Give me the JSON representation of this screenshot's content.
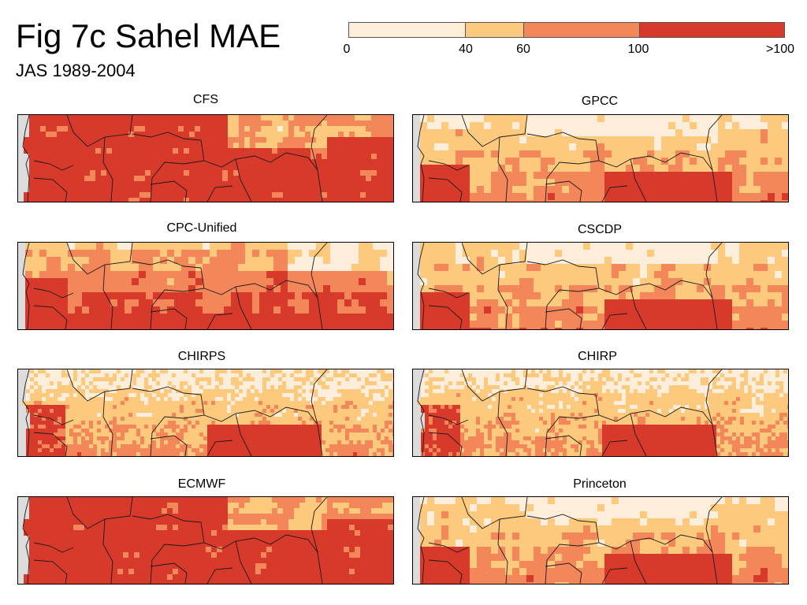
{
  "figure": {
    "title": "Fig 7c Sahel MAE",
    "subtitle": "JAS 1989-2004"
  },
  "colorbar": {
    "tick_labels": [
      "0",
      "40",
      "60",
      "100",
      ">100"
    ],
    "bins": [
      {
        "from": 0,
        "to": 40,
        "color": "#fdeedc"
      },
      {
        "from": 40,
        "to": 60,
        "color": "#fdca7d"
      },
      {
        "from": 60,
        "to": 100,
        "color": "#f4875a"
      },
      {
        "from": 100,
        "to": ">100",
        "color": "#d7392a"
      }
    ]
  },
  "colors": {
    "ocean": "#dcdcdc",
    "border": "#1a1a1a",
    "bin_0_40": "#fdeedc",
    "bin_40_60": "#fdca7d",
    "bin_60_100": "#f4875a",
    "bin_gt_100": "#d7392a"
  },
  "panels": [
    {
      "title": "CFS",
      "pattern": "high"
    },
    {
      "title": "GPCC",
      "pattern": "moderate"
    },
    {
      "title": "CPC-Unified",
      "pattern": "moderate-high"
    },
    {
      "title": "CSCDP",
      "pattern": "moderate"
    },
    {
      "title": "CHIRPS",
      "pattern": "fine"
    },
    {
      "title": "CHIRP",
      "pattern": "fine"
    },
    {
      "title": "ECMWF",
      "pattern": "high"
    },
    {
      "title": "Princeton",
      "pattern": "moderate"
    }
  ]
}
